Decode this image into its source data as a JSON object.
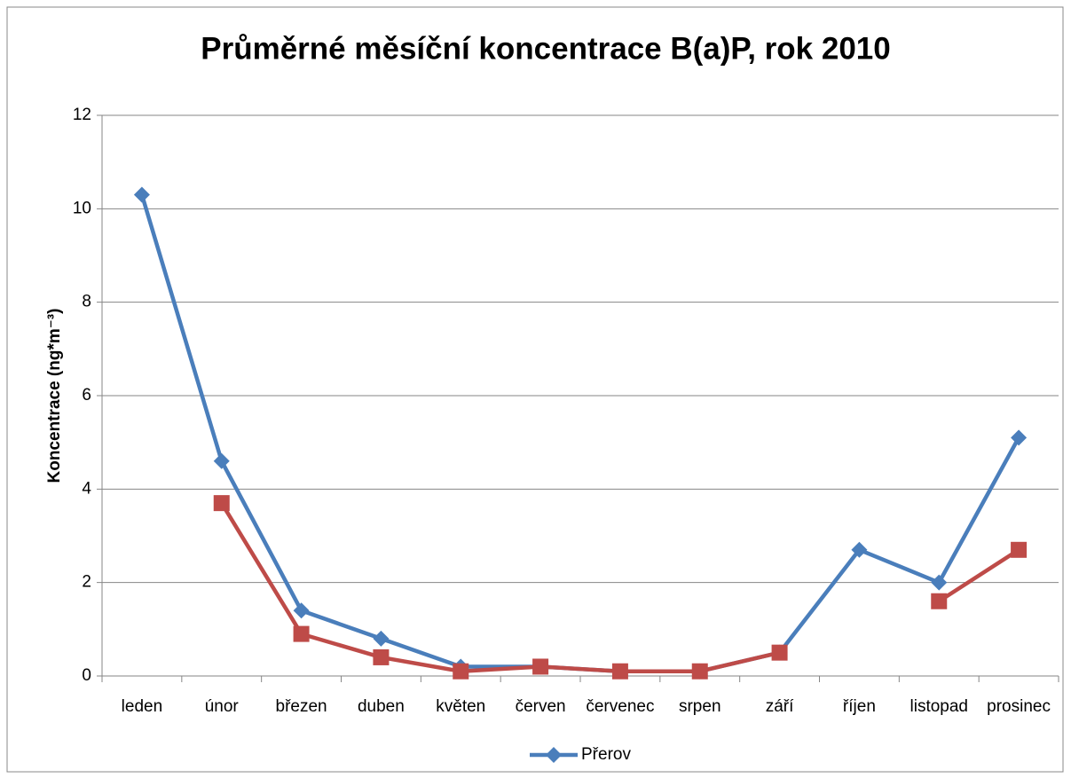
{
  "chart_data": {
    "type": "line",
    "title": "Průměrné měsíční koncentrace B(a)P, rok 2010",
    "y_label": "Koncentrace (ng*m⁻³)",
    "categories": [
      "leden",
      "únor",
      "březen",
      "duben",
      "květen",
      "červen",
      "červenec",
      "srpen",
      "září",
      "říjen",
      "listopad",
      "prosinec"
    ],
    "series": [
      {
        "name": "Přerov",
        "color": "#4a7ebb",
        "marker": "diamond",
        "values": [
          10.3,
          4.6,
          1.4,
          0.8,
          0.2,
          0.2,
          0.1,
          0.1,
          0.5,
          2.7,
          2.0,
          5.1
        ]
      },
      {
        "color": "#be4b48",
        "marker": "square",
        "values": [
          null,
          3.7,
          0.9,
          0.4,
          0.1,
          0.2,
          0.1,
          0.1,
          0.5,
          null,
          1.6,
          2.7
        ]
      }
    ],
    "ylim": [
      0,
      12
    ],
    "yticks": [
      0,
      2,
      4,
      6,
      8,
      10,
      12
    ],
    "grid": true,
    "legend": "bottom"
  }
}
